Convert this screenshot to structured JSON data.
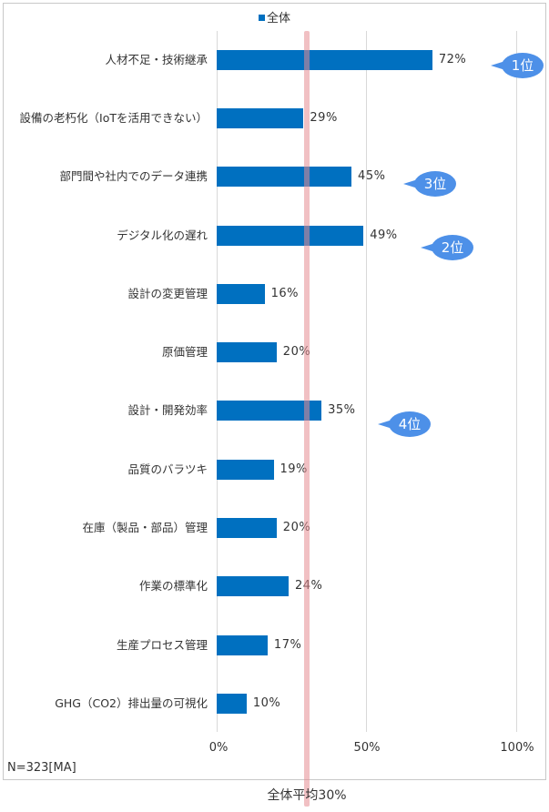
{
  "legend": {
    "series_label": "全体",
    "swatch_color": "#0070c0"
  },
  "axis": {
    "ticks": [
      "0%",
      "50%",
      "100%"
    ]
  },
  "average": {
    "label": "全体平均30%",
    "value": 30,
    "color": "#e68c91"
  },
  "note": "N=323[MA]",
  "rows": [
    {
      "label": "人材不足・技術継承",
      "value": 72,
      "value_label": "72%",
      "rank": "1位"
    },
    {
      "label": "設備の老朽化（IoTを活用できない）",
      "value": 29,
      "value_label": "29%",
      "rank": ""
    },
    {
      "label": "部門間や社内でのデータ連携",
      "value": 45,
      "value_label": "45%",
      "rank": "3位"
    },
    {
      "label": "デジタル化の遅れ",
      "value": 49,
      "value_label": "49%",
      "rank": "2位"
    },
    {
      "label": "設計の変更管理",
      "value": 16,
      "value_label": "16%",
      "rank": ""
    },
    {
      "label": "原価管理",
      "value": 20,
      "value_label": "20%",
      "rank": ""
    },
    {
      "label": "設計・開発効率",
      "value": 35,
      "value_label": "35%",
      "rank": "4位"
    },
    {
      "label": "品質のバラツキ",
      "value": 19,
      "value_label": "19%",
      "rank": ""
    },
    {
      "label": "在庫（製品・部品）管理",
      "value": 20,
      "value_label": "20%",
      "rank": ""
    },
    {
      "label": "作業の標準化",
      "value": 24,
      "value_label": "24%",
      "rank": ""
    },
    {
      "label": "生産プロセス管理",
      "value": 17,
      "value_label": "17%",
      "rank": ""
    },
    {
      "label": "GHG（CO2）排出量の可視化",
      "value": 10,
      "value_label": "10%",
      "rank": ""
    }
  ],
  "chart_data": {
    "type": "bar",
    "orientation": "horizontal",
    "title": "",
    "xlabel": "",
    "ylabel": "",
    "xlim": [
      0,
      100
    ],
    "x_ticks": [
      "0%",
      "50%",
      "100%"
    ],
    "grid": true,
    "legend": {
      "position": "top",
      "entries": [
        "全体"
      ]
    },
    "categories": [
      "人材不足・技術継承",
      "設備の老朽化（IoTを活用できない）",
      "部門間や社内でのデータ連携",
      "デジタル化の遅れ",
      "設計の変更管理",
      "原価管理",
      "設計・開発効率",
      "品質のバラツキ",
      "在庫（製品・部品）管理",
      "作業の標準化",
      "生産プロセス管理",
      "GHG（CO2）排出量の可視化"
    ],
    "series": [
      {
        "name": "全体",
        "color": "#0070c0",
        "values": [
          72,
          29,
          45,
          49,
          16,
          20,
          35,
          19,
          20,
          24,
          17,
          10
        ]
      }
    ],
    "reference_lines": [
      {
        "axis": "x",
        "value": 30,
        "label": "全体平均30%"
      }
    ],
    "annotations": [
      {
        "category": "人材不足・技術継承",
        "text": "1位"
      },
      {
        "category": "デジタル化の遅れ",
        "text": "2位"
      },
      {
        "category": "部門間や社内でのデータ連携",
        "text": "3位"
      },
      {
        "category": "設計・開発効率",
        "text": "4位"
      }
    ],
    "note": "N=323[MA]"
  }
}
